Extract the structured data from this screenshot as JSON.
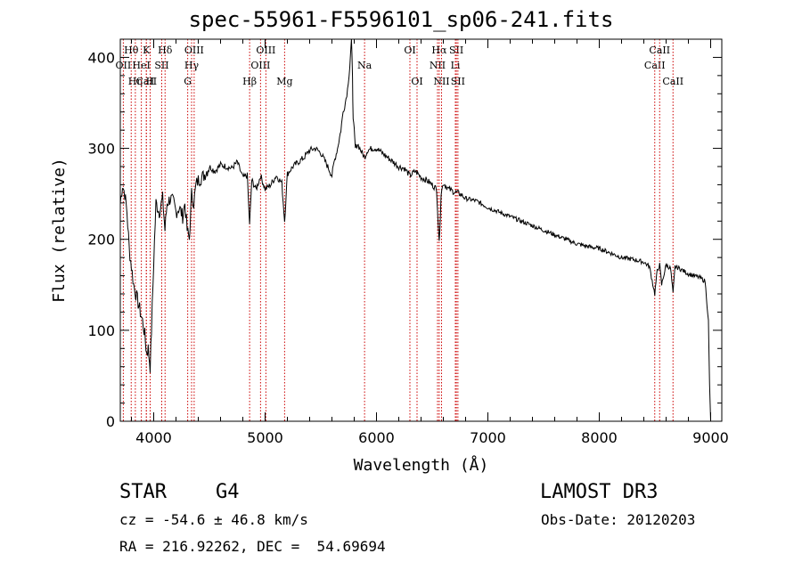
{
  "chart_data": {
    "type": "line",
    "title": "spec-55961-F5596101_sp06-241.fits",
    "xlabel": "Wavelength (Å)",
    "ylabel": "Flux (relative)",
    "xlim": [
      3700,
      9100
    ],
    "ylim": [
      0,
      420
    ],
    "x_ticks": [
      4000,
      5000,
      6000,
      7000,
      8000,
      9000
    ],
    "y_ticks": [
      0,
      100,
      200,
      300,
      400
    ],
    "line_color": "#000000",
    "marker_color": "#cc0000",
    "series": [
      {
        "name": "spectrum",
        "x": [
          3700,
          3720,
          3740,
          3760,
          3780,
          3800,
          3820,
          3840,
          3860,
          3880,
          3900,
          3920,
          3935,
          3950,
          3968,
          3980,
          4000,
          4020,
          4050,
          4080,
          4101,
          4120,
          4150,
          4180,
          4200,
          4230,
          4260,
          4280,
          4300,
          4320,
          4340,
          4360,
          4380,
          4400,
          4450,
          4500,
          4550,
          4600,
          4650,
          4700,
          4750,
          4800,
          4840,
          4861,
          4880,
          4920,
          4960,
          5000,
          5050,
          5100,
          5150,
          5175,
          5200,
          5250,
          5300,
          5350,
          5400,
          5450,
          5500,
          5550,
          5600,
          5620,
          5650,
          5680,
          5700,
          5720,
          5740,
          5760,
          5775,
          5785,
          5790,
          5800,
          5810,
          5830,
          5850,
          5870,
          5893,
          5920,
          5960,
          6000,
          6050,
          6100,
          6150,
          6200,
          6250,
          6300,
          6350,
          6400,
          6450,
          6500,
          6540,
          6563,
          6580,
          6600,
          6650,
          6700,
          6750,
          6800,
          6900,
          7000,
          7100,
          7200,
          7300,
          7400,
          7500,
          7600,
          7700,
          7800,
          7900,
          8000,
          8100,
          8200,
          8300,
          8400,
          8450,
          8498,
          8520,
          8542,
          8560,
          8600,
          8640,
          8662,
          8680,
          8720,
          8760,
          8800,
          8850,
          8900,
          8950,
          8980,
          8990,
          9000
        ],
        "values": [
          240,
          260,
          250,
          230,
          190,
          170,
          150,
          140,
          130,
          120,
          110,
          95,
          75,
          80,
          60,
          100,
          175,
          240,
          230,
          245,
          210,
          240,
          245,
          240,
          230,
          235,
          225,
          240,
          210,
          200,
          250,
          240,
          260,
          265,
          270,
          280,
          275,
          282,
          280,
          278,
          285,
          268,
          270,
          215,
          265,
          255,
          270,
          255,
          260,
          270,
          262,
          220,
          272,
          280,
          285,
          290,
          298,
          300,
          295,
          283,
          270,
          285,
          300,
          320,
          340,
          350,
          365,
          390,
          420,
          380,
          330,
          320,
          300,
          305,
          300,
          295,
          290,
          298,
          300,
          300,
          295,
          290,
          285,
          280,
          278,
          270,
          275,
          268,
          265,
          260,
          255,
          195,
          250,
          262,
          255,
          252,
          250,
          245,
          242,
          235,
          230,
          225,
          220,
          215,
          210,
          205,
          200,
          195,
          192,
          190,
          185,
          180,
          178,
          175,
          170,
          140,
          165,
          172,
          150,
          172,
          168,
          140,
          170,
          168,
          165,
          162,
          160,
          158,
          154,
          110,
          40,
          0
        ]
      }
    ],
    "lines": [
      {
        "label": "CaII",
        "x": 3934,
        "row": 3
      },
      {
        "label": "OII",
        "x": 3727,
        "row": 2
      },
      {
        "label": "Hθ",
        "x": 3798,
        "row": 1
      },
      {
        "label": "Hη",
        "x": 3835,
        "row": 3
      },
      {
        "label": "HeI",
        "x": 3889,
        "row": 2
      },
      {
        "label": "K",
        "x": 3934,
        "row": 1
      },
      {
        "label": "H",
        "x": 3968,
        "row": 3
      },
      {
        "label": "SII",
        "x": 4072,
        "row": 2
      },
      {
        "label": "Hδ",
        "x": 4102,
        "row": 1
      },
      {
        "label": "G",
        "x": 4305,
        "row": 3
      },
      {
        "label": "Hγ",
        "x": 4340,
        "row": 2
      },
      {
        "label": "OIII",
        "x": 4363,
        "row": 1
      },
      {
        "label": "Hβ",
        "x": 4861,
        "row": 3
      },
      {
        "label": "OIII",
        "x": 4959,
        "row": 2
      },
      {
        "label": "OIII",
        "x": 5007,
        "row": 1
      },
      {
        "label": "Mg",
        "x": 5175,
        "row": 3
      },
      {
        "label": "Na",
        "x": 5893,
        "row": 2
      },
      {
        "label": "OI",
        "x": 6300,
        "row": 1
      },
      {
        "label": "OI",
        "x": 6364,
        "row": 3
      },
      {
        "label": "NII",
        "x": 6548,
        "row": 2
      },
      {
        "label": "Hα",
        "x": 6563,
        "row": 1
      },
      {
        "label": "NII",
        "x": 6584,
        "row": 3
      },
      {
        "label": "Li",
        "x": 6708,
        "row": 2
      },
      {
        "label": "SII",
        "x": 6717,
        "row": 1
      },
      {
        "label": "SII",
        "x": 6731,
        "row": 3
      },
      {
        "label": "CaII",
        "x": 8498,
        "row": 2
      },
      {
        "label": "CaII",
        "x": 8542,
        "row": 1
      },
      {
        "label": "CaII",
        "x": 8662,
        "row": 3
      }
    ]
  },
  "footer": {
    "object_type": "STAR",
    "subclass": "G4",
    "survey": "LAMOST DR3",
    "redshift": "cz = -54.6 ± 46.8 km/s",
    "obs_date": "Obs-Date: 20120203",
    "coords": "RA = 216.92262, DEC =  54.69694"
  }
}
